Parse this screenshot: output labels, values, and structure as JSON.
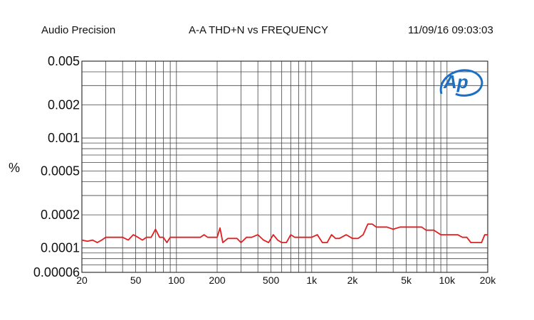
{
  "header": {
    "left": "Audio Precision",
    "center": "A-A THD+N vs FREQUENCY",
    "right": "11/09/16 09:03:03"
  },
  "logo": {
    "text": "Ap",
    "color": "#1e6fc0"
  },
  "chart_data": {
    "type": "line",
    "title": "A-A THD+N vs FREQUENCY",
    "xlabel": "",
    "ylabel": "%",
    "xscale": "log",
    "yscale": "log",
    "xlim": [
      20,
      20000
    ],
    "ylim": [
      6e-05,
      0.005
    ],
    "grid": true,
    "xticks": [
      20,
      50,
      100,
      200,
      500,
      1000,
      2000,
      5000,
      10000,
      20000
    ],
    "xtick_labels": [
      "20",
      "50",
      "100",
      "200",
      "500",
      "1k",
      "2k",
      "5k",
      "10k",
      "20k"
    ],
    "yticks": [
      6e-05,
      0.0001,
      0.0002,
      0.0005,
      0.001,
      0.002,
      0.005
    ],
    "ytick_labels": [
      "0.00006",
      "0.0001",
      "0.0002",
      "0.0005",
      "0.001",
      "0.002",
      "0.005"
    ],
    "line_color": "#e02020",
    "series": [
      {
        "x": [
          20,
          22,
          24,
          26,
          28,
          30,
          33,
          36,
          40,
          44,
          48,
          52,
          56,
          60,
          65,
          70,
          75,
          80,
          85,
          90,
          100,
          110,
          120,
          130,
          150,
          160,
          170,
          180,
          200,
          210,
          220,
          240,
          260,
          280,
          300,
          330,
          360,
          400,
          440,
          480,
          520,
          560,
          600,
          650,
          700,
          750,
          800,
          900,
          1000,
          1100,
          1200,
          1300,
          1400,
          1500,
          1600,
          1800,
          2000,
          2200,
          2400,
          2600,
          2800,
          3000,
          3300,
          3600,
          4000,
          4500,
          5000,
          5500,
          6000,
          6500,
          7000,
          8000,
          9000,
          10000,
          11000,
          12000,
          13000,
          14000,
          15000,
          16000,
          17000,
          18000,
          19000,
          20000
        ],
        "y": [
          0.000118,
          0.000115,
          0.000118,
          0.000112,
          0.000118,
          0.000125,
          0.000125,
          0.000125,
          0.000125,
          0.000118,
          0.000132,
          0.000125,
          0.000118,
          0.000125,
          0.000125,
          0.000148,
          0.000125,
          0.000125,
          0.000112,
          0.000125,
          0.000125,
          0.000125,
          0.000125,
          0.000125,
          0.000125,
          0.000132,
          0.000125,
          0.000125,
          0.000125,
          0.000152,
          0.000112,
          0.000122,
          0.000122,
          0.000122,
          0.000112,
          0.000125,
          0.000125,
          0.000132,
          0.000118,
          0.000112,
          0.000132,
          0.000118,
          0.000112,
          0.000112,
          0.000132,
          0.000125,
          0.000125,
          0.000125,
          0.000125,
          0.000132,
          0.000112,
          0.000112,
          0.000132,
          0.000122,
          0.000122,
          0.000132,
          0.000122,
          0.000122,
          0.000132,
          0.000165,
          0.000165,
          0.000155,
          0.000155,
          0.000155,
          0.000148,
          0.000155,
          0.000155,
          0.000155,
          0.000155,
          0.000155,
          0.000145,
          0.000145,
          0.000132,
          0.000132,
          0.000132,
          0.000132,
          0.000125,
          0.000125,
          0.000112,
          0.000112,
          0.000112,
          0.000112,
          0.000132,
          0.000132
        ]
      }
    ]
  }
}
